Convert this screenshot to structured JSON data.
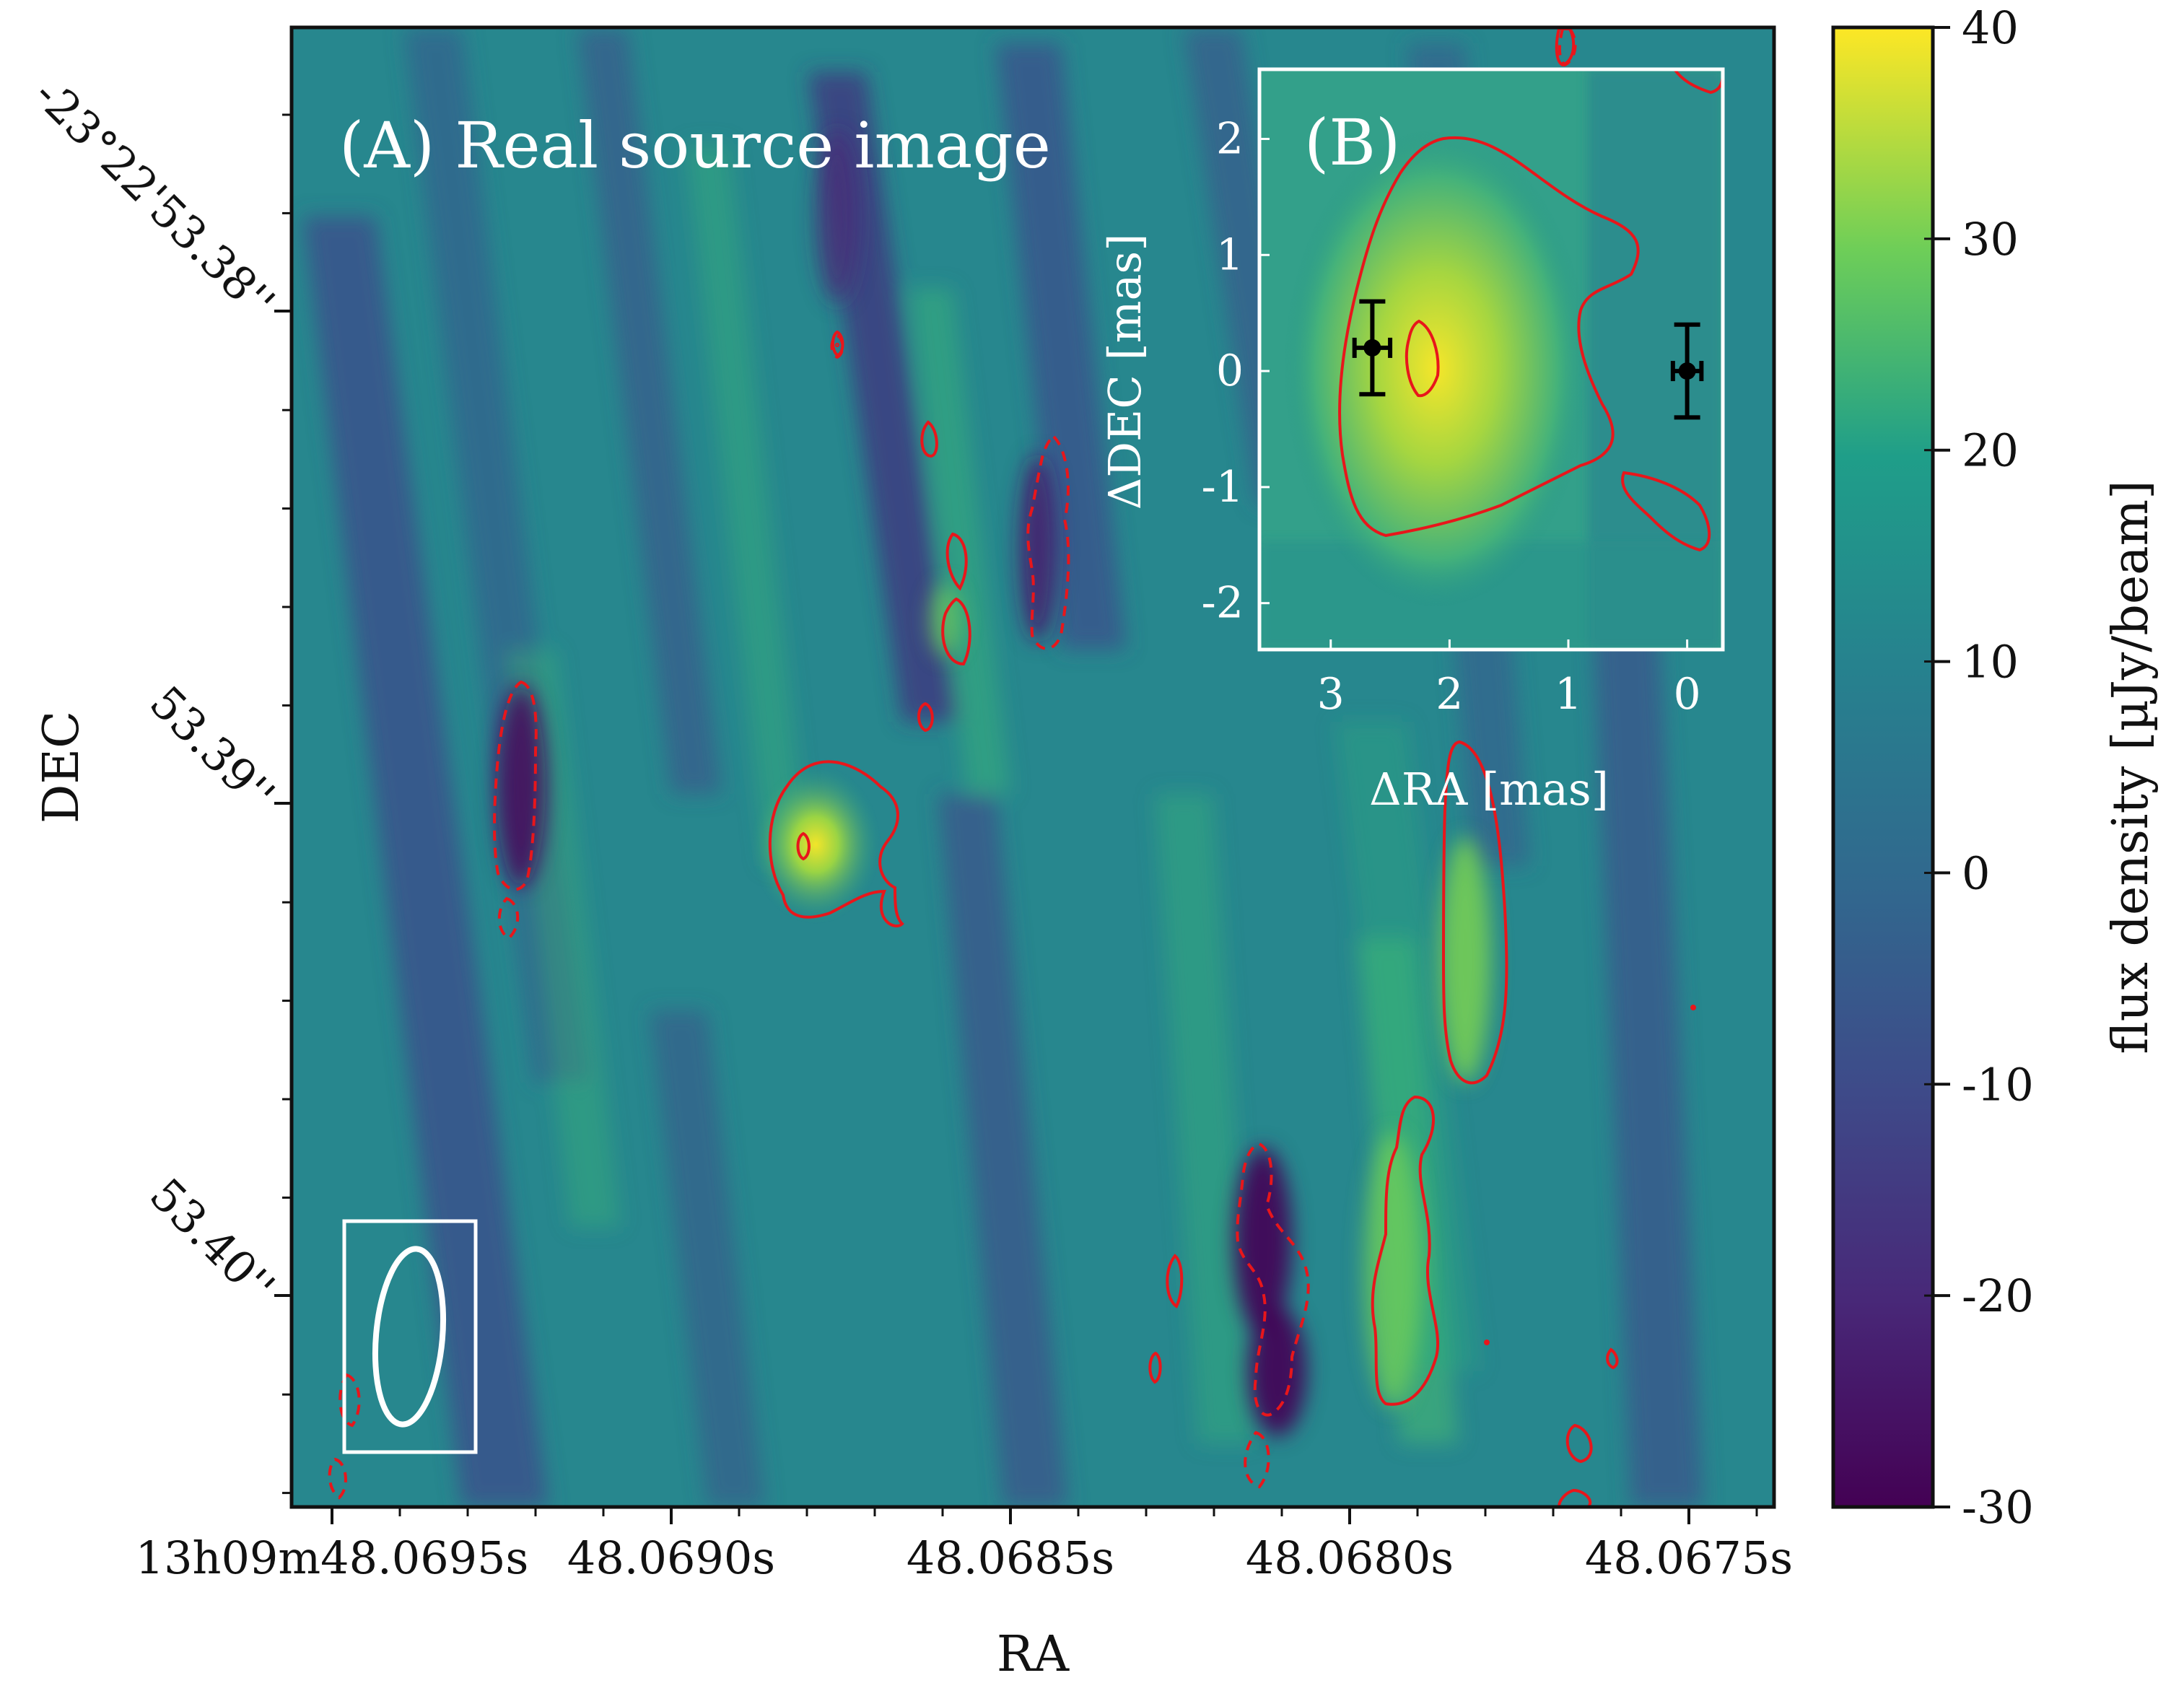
{
  "chart_data": [
    {
      "panel": "A",
      "type": "heatmap",
      "title": "(A) Real source image",
      "xlabel": "RA",
      "ylabel": "DEC",
      "x_ticks": [
        "13h09m48.0695s",
        "48.0690s",
        "48.0685s",
        "48.0680s",
        "48.0675s"
      ],
      "y_ticks": [
        "-23°22'53.38''",
        "53.39''",
        "53.40''"
      ],
      "colormap": "viridis",
      "contours": {
        "positive": "solid red",
        "negative": "dashed red"
      },
      "beam": "white ellipse, lower-left"
    },
    {
      "panel": "B",
      "type": "heatmap",
      "title": "(B)",
      "xlabel": "ΔRA [mas]",
      "ylabel": "ΔDEC [mas]",
      "xlim": [
        3.6,
        -0.3
      ],
      "ylim": [
        -2.4,
        2.6
      ],
      "x_ticks": [
        "3",
        "2",
        "1",
        "0"
      ],
      "y_ticks": [
        "2",
        "1",
        "0",
        "-1",
        "-2"
      ],
      "points": [
        {
          "x": 2.65,
          "y": 0.2,
          "xerr": 0.15,
          "yerr": 0.4
        },
        {
          "x": 0.0,
          "y": 0.0,
          "xerr": 0.12,
          "yerr": 0.4
        }
      ]
    },
    {
      "panel": "colorbar",
      "type": "colorbar",
      "label": "flux density [µJy/beam]",
      "range": [
        -30,
        40
      ],
      "ticks": [
        "40",
        "30",
        "20",
        "10",
        "0",
        "-10",
        "-20",
        "-30"
      ]
    }
  ],
  "colors": {
    "contour": "#e8161b",
    "annotation": "#ffffff",
    "viridis_low": "#440154",
    "viridis_high": "#fde725"
  }
}
